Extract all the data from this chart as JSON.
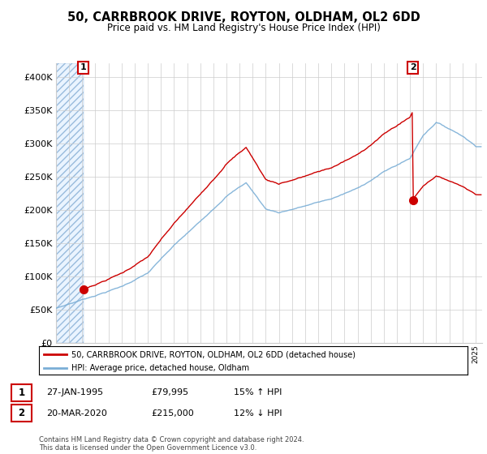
{
  "title": "50, CARRBROOK DRIVE, ROYTON, OLDHAM, OL2 6DD",
  "subtitle": "Price paid vs. HM Land Registry's House Price Index (HPI)",
  "xlim_start": 1993.0,
  "xlim_end": 2025.5,
  "ylim": [
    0,
    420000
  ],
  "yticks": [
    0,
    50000,
    100000,
    150000,
    200000,
    250000,
    300000,
    350000,
    400000
  ],
  "ytick_labels": [
    "£0",
    "£50K",
    "£100K",
    "£150K",
    "£200K",
    "£250K",
    "£300K",
    "£350K",
    "£400K"
  ],
  "sale1_date_x": 1995.08,
  "sale1_price": 79995,
  "sale1_label": "1",
  "sale2_date_x": 2020.22,
  "sale2_price": 215000,
  "sale2_label": "2",
  "legend_line1": "50, CARRBROOK DRIVE, ROYTON, OLDHAM, OL2 6DD (detached house)",
  "legend_line2": "HPI: Average price, detached house, Oldham",
  "footer": "Contains HM Land Registry data © Crown copyright and database right 2024.\nThis data is licensed under the Open Government Licence v3.0.",
  "red_color": "#cc0000",
  "blue_color": "#7aaed6",
  "grid_color": "#cccccc",
  "background_color": "#ffffff",
  "hpi_knots_x": [
    1993,
    1995,
    1998,
    2000,
    2002,
    2004,
    2006,
    2007.5,
    2009,
    2010,
    2012,
    2014,
    2016,
    2018,
    2020,
    2021,
    2022,
    2023,
    2024,
    2025
  ],
  "hpi_knots_y": [
    52000,
    65000,
    85000,
    105000,
    145000,
    180000,
    220000,
    240000,
    200000,
    195000,
    205000,
    215000,
    230000,
    255000,
    275000,
    310000,
    330000,
    320000,
    310000,
    295000
  ]
}
